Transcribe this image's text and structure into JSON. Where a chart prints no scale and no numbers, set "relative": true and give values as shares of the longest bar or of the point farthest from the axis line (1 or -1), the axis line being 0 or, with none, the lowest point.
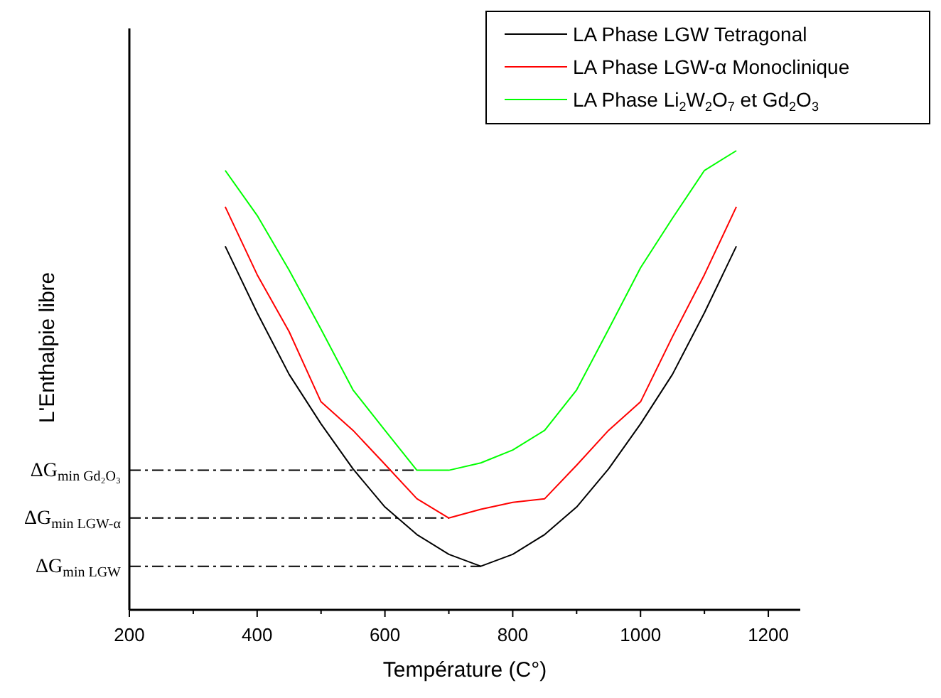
{
  "chart_data": {
    "type": "line",
    "relative": true,
    "xlabel": "Température (C°)",
    "ylabel": "L'Enthalpie libre",
    "x": [
      350,
      400,
      450,
      500,
      550,
      600,
      650,
      700,
      750,
      800,
      850,
      900,
      950,
      1000,
      1050,
      1100,
      1150
    ],
    "xlim": [
      200,
      1250
    ],
    "xticks": [
      200,
      {
        "value": 300,
        "label": null
      },
      400,
      {
        "value": 500,
        "label": null
      },
      600,
      {
        "value": 700,
        "label": null
      },
      800,
      {
        "value": 900,
        "label": null
      },
      1000,
      {
        "value": 1100,
        "label": null
      },
      1200
    ],
    "series": [
      {
        "name": "LA Phase LGW Tetragonal",
        "color": "#000000",
        "values": [
          0.792,
          0.647,
          0.513,
          0.405,
          0.307,
          0.224,
          0.164,
          0.121,
          0.095,
          0.121,
          0.164,
          0.224,
          0.307,
          0.405,
          0.513,
          0.647,
          0.792
        ]
      },
      {
        "name": "LA Phase LGW-α Monoclinique",
        "color": "#ff0000",
        "values": [
          0.878,
          0.73,
          0.606,
          0.453,
          0.391,
          0.317,
          0.242,
          0.2,
          0.219,
          0.234,
          0.242,
          0.315,
          0.391,
          0.453,
          0.595,
          0.73,
          0.878
        ]
      },
      {
        "name": "LA Phase Li$_{2}$W$_{2}$O$_{7}$ et Gd$_{2}$O$_{3}$",
        "color": "#00ff00",
        "values": [
          0.957,
          0.859,
          0.74,
          0.611,
          0.479,
          0.391,
          0.304,
          0.304,
          0.32,
          0.348,
          0.391,
          0.479,
          0.611,
          0.745,
          0.853,
          0.957,
          1
        ]
      }
    ],
    "ref_lines": [
      {
        "axis": "y",
        "value": 0.304,
        "label": "ΔG$_{min Gd₂O₃}$",
        "line_style": "dashdot"
      },
      {
        "axis": "y",
        "value": 0.2,
        "label": "ΔG$_{min LGW-α}$",
        "line_style": "dashdot"
      },
      {
        "axis": "y",
        "value": 0.095,
        "label": "ΔG$_{min LGW}$",
        "line_style": "dashdot"
      }
    ],
    "legend": "top right",
    "grid": false,
    "marker": "none",
    "line_style": "solid"
  }
}
